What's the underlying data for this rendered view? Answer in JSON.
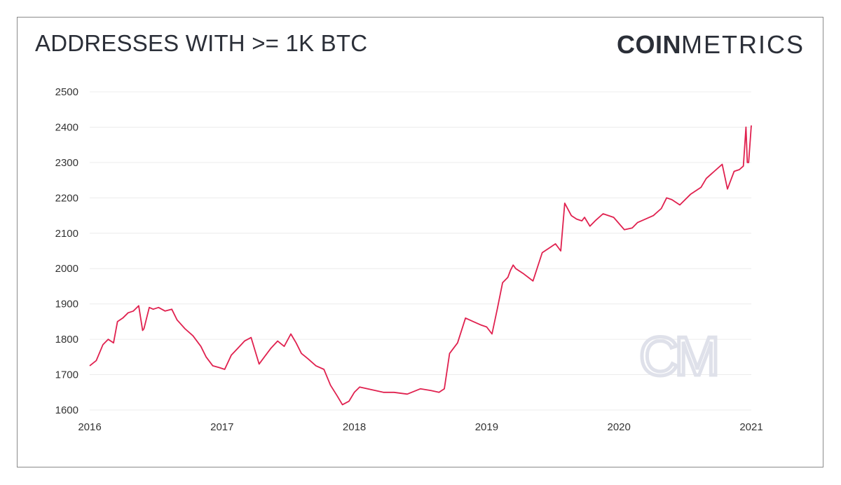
{
  "header": {
    "title": "ADDRESSES WITH >= 1K BTC",
    "brand_bold": "COIN",
    "brand_light": "METRICS"
  },
  "watermark": "CM",
  "colors": {
    "line": "#e0214f",
    "text": "#2b2f38",
    "grid": "#ececec"
  },
  "chart_data": {
    "type": "line",
    "title": "ADDRESSES WITH >= 1K BTC",
    "xlabel": "",
    "ylabel": "",
    "xlim": [
      2016.0,
      2021.0
    ],
    "ylim": [
      1600,
      2500
    ],
    "yticks": [
      2500,
      2400,
      2300,
      2200,
      2100,
      2000,
      1900,
      1800,
      1700,
      1600
    ],
    "xticks": [
      "2016",
      "2017",
      "2018",
      "2019",
      "2020",
      "2021"
    ],
    "grid": true,
    "legend": "none",
    "series": [
      {
        "x": [
          2016.0,
          2016.05,
          2016.1,
          2016.14,
          2016.18,
          2016.21,
          2016.25,
          2016.29,
          2016.33,
          2016.37,
          2016.4,
          2016.41,
          2016.45,
          2016.48,
          2016.52,
          2016.57,
          2016.62,
          2016.66,
          2016.72,
          2016.78,
          2016.84,
          2016.88,
          2016.93,
          2016.98,
          2017.02,
          2017.07,
          2017.12,
          2017.17,
          2017.22,
          2017.28,
          2017.33,
          2017.37,
          2017.42,
          2017.47,
          2017.52,
          2017.56,
          2017.6,
          2017.65,
          2017.71,
          2017.77,
          2017.82,
          2017.87,
          2017.91,
          2017.96,
          2018.0,
          2018.04,
          2018.1,
          2018.16,
          2018.22,
          2018.3,
          2018.4,
          2018.5,
          2018.58,
          2018.64,
          2018.68,
          2018.72,
          2018.78,
          2018.84,
          2018.9,
          2018.96,
          2019.0,
          2019.04,
          2019.08,
          2019.12,
          2019.16,
          2019.18,
          2019.2,
          2019.22,
          2019.28,
          2019.35,
          2019.42,
          2019.48,
          2019.52,
          2019.56,
          2019.59,
          2019.64,
          2019.68,
          2019.72,
          2019.74,
          2019.78,
          2019.82,
          2019.88,
          2019.96,
          2020.04,
          2020.1,
          2020.14,
          2020.2,
          2020.26,
          2020.32,
          2020.36,
          2020.4,
          2020.46,
          2020.54,
          2020.62,
          2020.66,
          2020.72,
          2020.78,
          2020.82,
          2020.87,
          2020.91,
          2020.94,
          2020.96,
          2020.97,
          2020.98,
          2021.0
        ],
        "y": [
          1725,
          1740,
          1785,
          1800,
          1790,
          1850,
          1860,
          1875,
          1880,
          1895,
          1825,
          1830,
          1890,
          1885,
          1890,
          1880,
          1885,
          1855,
          1830,
          1810,
          1780,
          1750,
          1725,
          1720,
          1715,
          1755,
          1775,
          1795,
          1805,
          1730,
          1755,
          1775,
          1795,
          1780,
          1815,
          1790,
          1760,
          1745,
          1725,
          1715,
          1670,
          1640,
          1615,
          1625,
          1650,
          1665,
          1660,
          1655,
          1650,
          1650,
          1645,
          1660,
          1655,
          1650,
          1660,
          1760,
          1790,
          1860,
          1850,
          1840,
          1835,
          1815,
          1885,
          1960,
          1975,
          1995,
          2010,
          2000,
          1985,
          1965,
          2045,
          2060,
          2070,
          2050,
          2185,
          2150,
          2140,
          2135,
          2145,
          2120,
          2135,
          2155,
          2145,
          2110,
          2115,
          2130,
          2140,
          2150,
          2170,
          2200,
          2195,
          2180,
          2210,
          2230,
          2255,
          2275,
          2295,
          2225,
          2275,
          2280,
          2290,
          2400,
          2300,
          2300,
          2405
        ]
      }
    ]
  }
}
